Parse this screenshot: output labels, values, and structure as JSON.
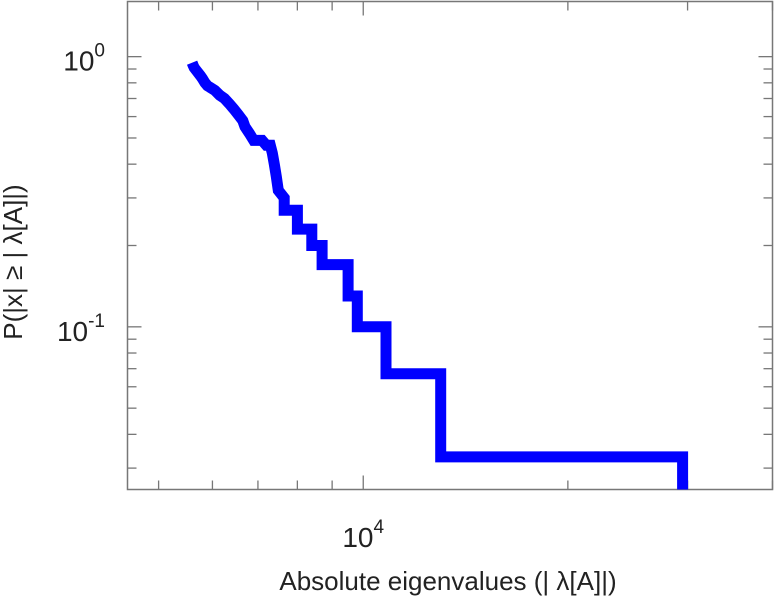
{
  "chart_data": {
    "type": "line",
    "subtype": "ccdf-step",
    "title": "",
    "xlabel": "Absolute eigenvalues (|     λ[A]|)",
    "ylabel": "P(|x|  ≥ | λ[A]|)",
    "xscale": "log",
    "yscale": "log",
    "xlim": [
      4500,
      40000
    ],
    "ylim": [
      0.025,
      1.6
    ],
    "grid": false,
    "x_ticks": [
      {
        "value": 10000,
        "base": "10",
        "exp": "4"
      }
    ],
    "y_ticks": [
      {
        "value": 1,
        "base": "10",
        "exp": "0"
      },
      {
        "value": 0.1,
        "base": "10",
        "exp": "-1"
      }
    ],
    "series": [
      {
        "color": "#0000ff",
        "points": [
          [
            5600,
            0.95
          ],
          [
            5620,
            0.93
          ],
          [
            5640,
            0.91
          ],
          [
            5680,
            0.89
          ],
          [
            5720,
            0.87
          ],
          [
            5760,
            0.85
          ],
          [
            5800,
            0.83
          ],
          [
            5850,
            0.8
          ],
          [
            5900,
            0.78
          ],
          [
            5950,
            0.77
          ],
          [
            6050,
            0.75
          ],
          [
            6150,
            0.72
          ],
          [
            6250,
            0.7
          ],
          [
            6350,
            0.67
          ],
          [
            6450,
            0.64
          ],
          [
            6550,
            0.61
          ],
          [
            6650,
            0.58
          ],
          [
            6700,
            0.55
          ],
          [
            6800,
            0.52
          ],
          [
            6900,
            0.49
          ],
          [
            7100,
            0.49
          ],
          [
            7200,
            0.47
          ],
          [
            7300,
            0.47
          ],
          [
            7350,
            0.44
          ],
          [
            7400,
            0.4
          ],
          [
            7450,
            0.36
          ],
          [
            7500,
            0.32
          ],
          [
            7650,
            0.3
          ],
          [
            7650,
            0.27
          ],
          [
            8000,
            0.27
          ],
          [
            8000,
            0.23
          ],
          [
            8400,
            0.23
          ],
          [
            8400,
            0.2
          ],
          [
            8700,
            0.2
          ],
          [
            8700,
            0.17
          ],
          [
            9500,
            0.17
          ],
          [
            9500,
            0.13
          ],
          [
            9800,
            0.13
          ],
          [
            9800,
            0.1
          ],
          [
            10800,
            0.1
          ],
          [
            10800,
            0.067
          ],
          [
            13000,
            0.067
          ],
          [
            13000,
            0.033
          ],
          [
            29500,
            0.033
          ],
          [
            29500,
            0.025
          ]
        ]
      }
    ]
  }
}
